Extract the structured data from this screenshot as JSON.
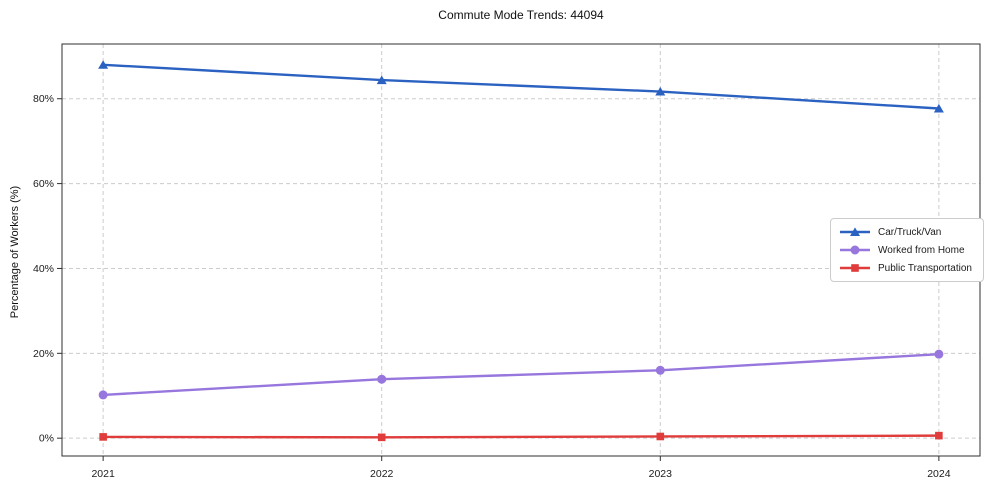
{
  "chart_data": {
    "type": "line",
    "title": "Commute Mode Trends: 44094",
    "xlabel": "",
    "ylabel": "Percentage of Workers (%)",
    "categories": [
      "2021",
      "2022",
      "2023",
      "2024"
    ],
    "yticks": [
      0,
      20,
      40,
      60,
      80
    ],
    "ytick_suffix": "%",
    "ylim": [
      -4.2,
      92.9
    ],
    "grid": true,
    "grid_style": "dashed",
    "legend_position": "center-right",
    "series": [
      {
        "name": "Car/Truck/Van",
        "marker": "triangle",
        "color": "#2b62c1",
        "values": [
          88.0,
          84.4,
          81.7,
          77.7
        ]
      },
      {
        "name": "Worked from Home",
        "marker": "circle",
        "color": "#9776dd",
        "values": [
          10.2,
          13.9,
          16.0,
          19.8
        ]
      },
      {
        "name": "Public Transportation",
        "marker": "square",
        "color": "#e03c3c",
        "values": [
          0.3,
          0.2,
          0.4,
          0.6
        ]
      }
    ],
    "colors": {
      "grid": "#cccccc",
      "spine": "#2f2f2f",
      "tick_text": "#1c1c1c",
      "background": "#ffffff"
    }
  }
}
